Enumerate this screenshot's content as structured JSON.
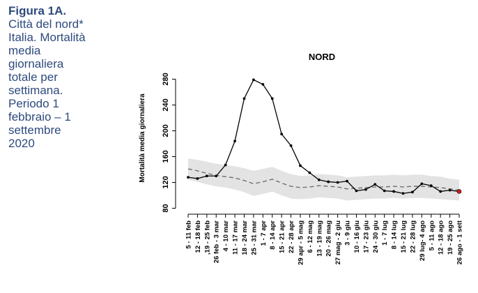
{
  "caption": {
    "title": "Figura 1A.",
    "lines": [
      "Città del nord*",
      "Italia. Mortalità",
      "media",
      "giornaliera",
      "totale per",
      "settimana.",
      "Periodo 1",
      "febbraio – 1",
      "settembre",
      "2020"
    ]
  },
  "chart_data": {
    "type": "line",
    "title": "NORD",
    "xlabel": "",
    "ylabel": "Mortalità media giornaliera",
    "ylim": [
      80,
      290
    ],
    "yticks": [
      80,
      120,
      160,
      200,
      240,
      280
    ],
    "grid": false,
    "categories": [
      "5 - 11 feb",
      "12 - 18 feb",
      ",19 - 25 feb",
      "26 feb - 3 mar",
      "4 - 10 mar",
      "11 - 17 mar",
      "18 - 24 mar",
      "25 - 31 mar",
      "1 - 7 apr",
      "8 - 14 apr",
      "15 - 21 apr",
      "22 - 28 apr",
      "29 apr - 5 mag",
      "6 - 12 mag",
      "13 - 19 mag",
      "20 - 26 mag",
      "27 mag - 2 giu",
      "3 - 9 giu",
      "10 - 16 giu",
      "17 - 23 giu",
      "24 - 30 giu",
      "1 - 7 lug",
      "8 - 14 lug",
      "15 - 21 lug",
      "22 - 28 lug",
      "29 lug- 4 ago",
      "5 - 11 ago",
      "12 - 18 ago",
      "19 - 25 ago",
      "26 ago - 1 sett"
    ],
    "series": [
      {
        "style": "solid-line-with-points",
        "color": "#000000",
        "last_point_color": "#d7191c",
        "values": [
          128,
          126,
          130,
          130,
          147,
          184,
          250,
          279,
          272,
          250,
          195,
          177,
          146,
          135,
          124,
          121,
          120,
          122,
          107,
          109,
          117,
          107,
          106,
          103,
          105,
          118,
          115,
          106,
          108,
          106
        ]
      },
      {
        "style": "dashed-line",
        "color": "#666666",
        "values": [
          141,
          138,
          134,
          131,
          129,
          127,
          123,
          118,
          121,
          125,
          119,
          114,
          112,
          113,
          115,
          114,
          113,
          110,
          111,
          112,
          113,
          113,
          114,
          113,
          114,
          114,
          113,
          112,
          110,
          108
        ]
      },
      {
        "style": "band",
        "color": "#e3e3e3",
        "upper": [
          157,
          155,
          152,
          149,
          147,
          145,
          142,
          138,
          141,
          144,
          138,
          133,
          130,
          131,
          133,
          132,
          131,
          128,
          129,
          130,
          131,
          131,
          132,
          131,
          132,
          132,
          130,
          129,
          126,
          124
        ],
        "lower": [
          124,
          121,
          117,
          114,
          112,
          109,
          105,
          99,
          102,
          106,
          100,
          95,
          94,
          95,
          97,
          96,
          95,
          92,
          93,
          94,
          95,
          95,
          96,
          95,
          96,
          96,
          95,
          94,
          93,
          92
        ]
      }
    ]
  }
}
